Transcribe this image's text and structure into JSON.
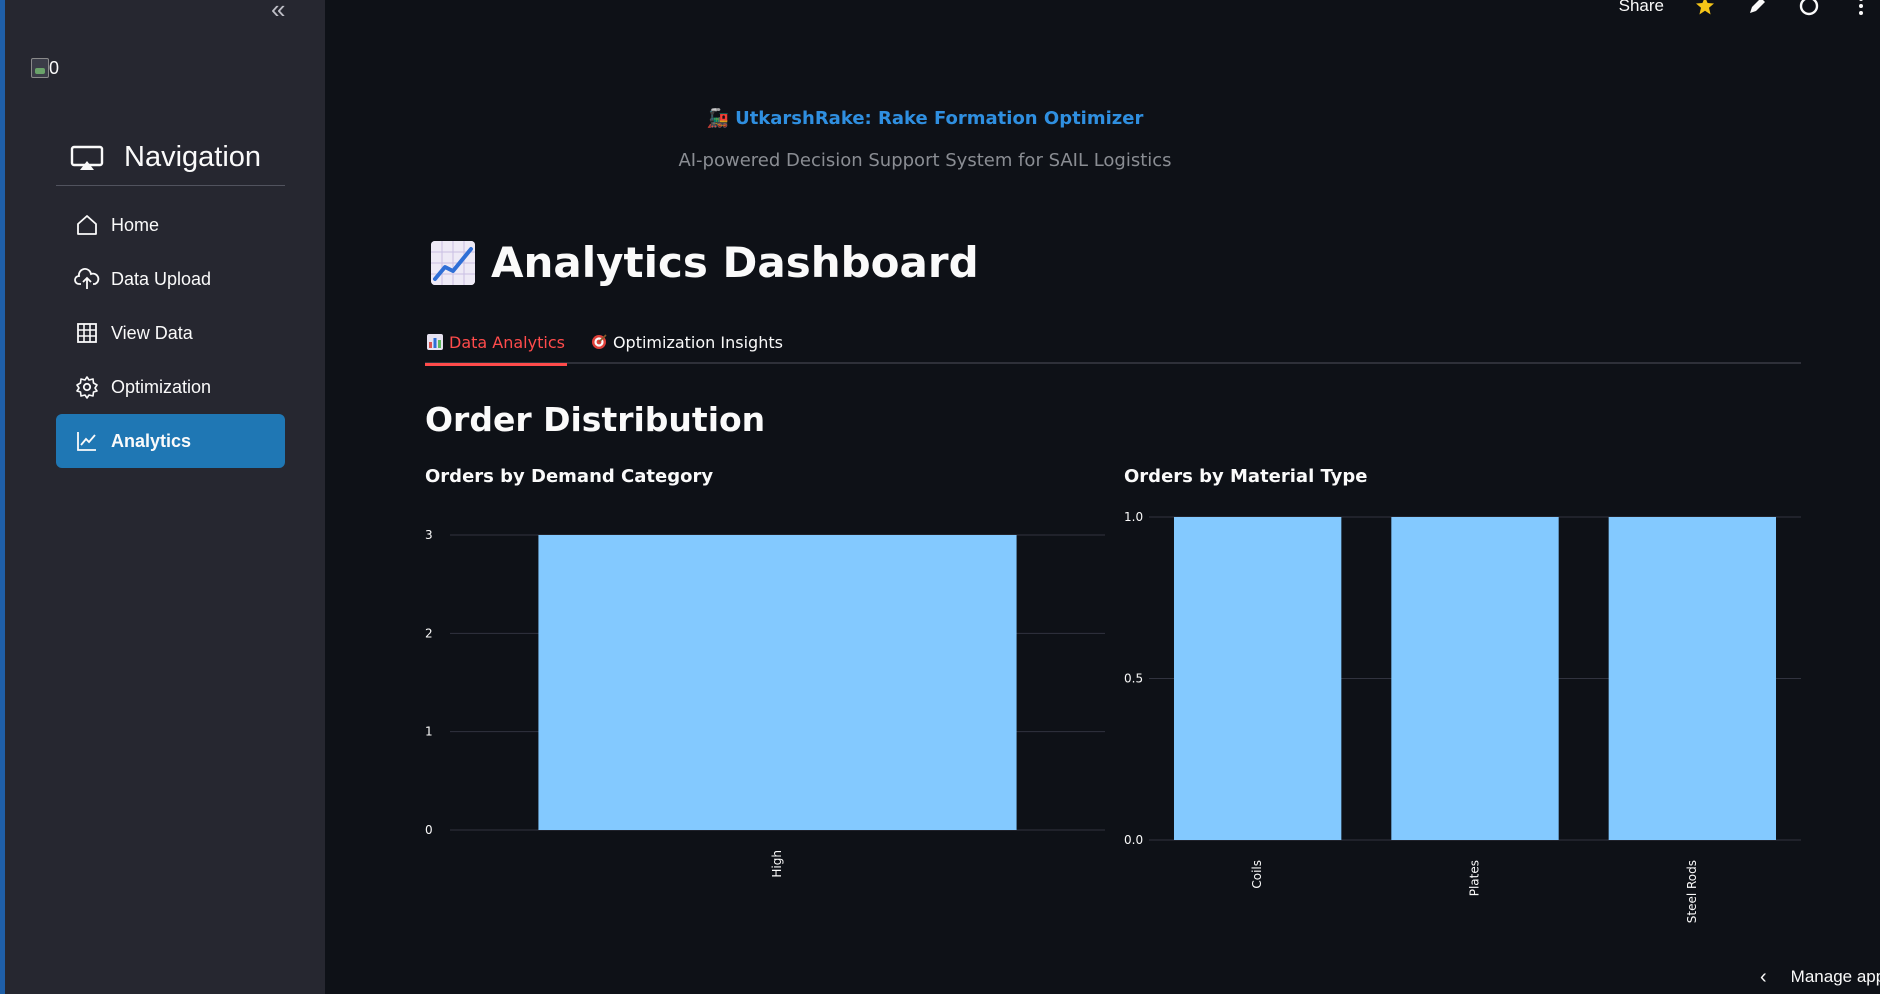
{
  "sidebar": {
    "collapse_glyph": "«",
    "image_alt": "0",
    "nav_title": "Navigation",
    "items": [
      {
        "label": "Home",
        "icon": "home-icon"
      },
      {
        "label": "Data Upload",
        "icon": "cloud-upload-icon"
      },
      {
        "label": "View Data",
        "icon": "table-icon"
      },
      {
        "label": "Optimization",
        "icon": "gear-icon"
      },
      {
        "label": "Analytics",
        "icon": "line-chart-icon",
        "active": true
      }
    ],
    "accent_color": "#1f77b4"
  },
  "topbar": {
    "share_label": "Share"
  },
  "header": {
    "app_title": "UtkarshRake: Rake Formation Optimizer",
    "app_subtitle": "AI-powered Decision Support System for SAIL Logistics",
    "page_title": "Analytics Dashboard"
  },
  "tabs": [
    {
      "label": "Data Analytics",
      "active": true
    },
    {
      "label": "Optimization Insights",
      "active": false
    }
  ],
  "section": {
    "title": "Order Distribution"
  },
  "footer": {
    "manage_label": "Manage app"
  },
  "chart_data": [
    {
      "type": "bar",
      "title": "Orders by Demand Category",
      "categories": [
        "High"
      ],
      "values": [
        3
      ],
      "ylim": [
        0,
        3
      ],
      "yticks": [
        0,
        1,
        2,
        3
      ],
      "ytick_labels": [
        "0",
        "1",
        "2",
        "3"
      ],
      "xlabel": "",
      "ylabel": "",
      "grid": true,
      "bar_color": "#83c9ff"
    },
    {
      "type": "bar",
      "title": "Orders by Material Type",
      "categories": [
        "Coils",
        "Plates",
        "Steel Rods"
      ],
      "values": [
        1.0,
        1.0,
        1.0
      ],
      "ylim": [
        0,
        1.0
      ],
      "yticks": [
        0,
        0.5,
        1.0
      ],
      "ytick_labels": [
        "0.0",
        "0.5",
        "1.0"
      ],
      "xlabel": "",
      "ylabel": "",
      "grid": true,
      "bar_color": "#83c9ff"
    }
  ]
}
